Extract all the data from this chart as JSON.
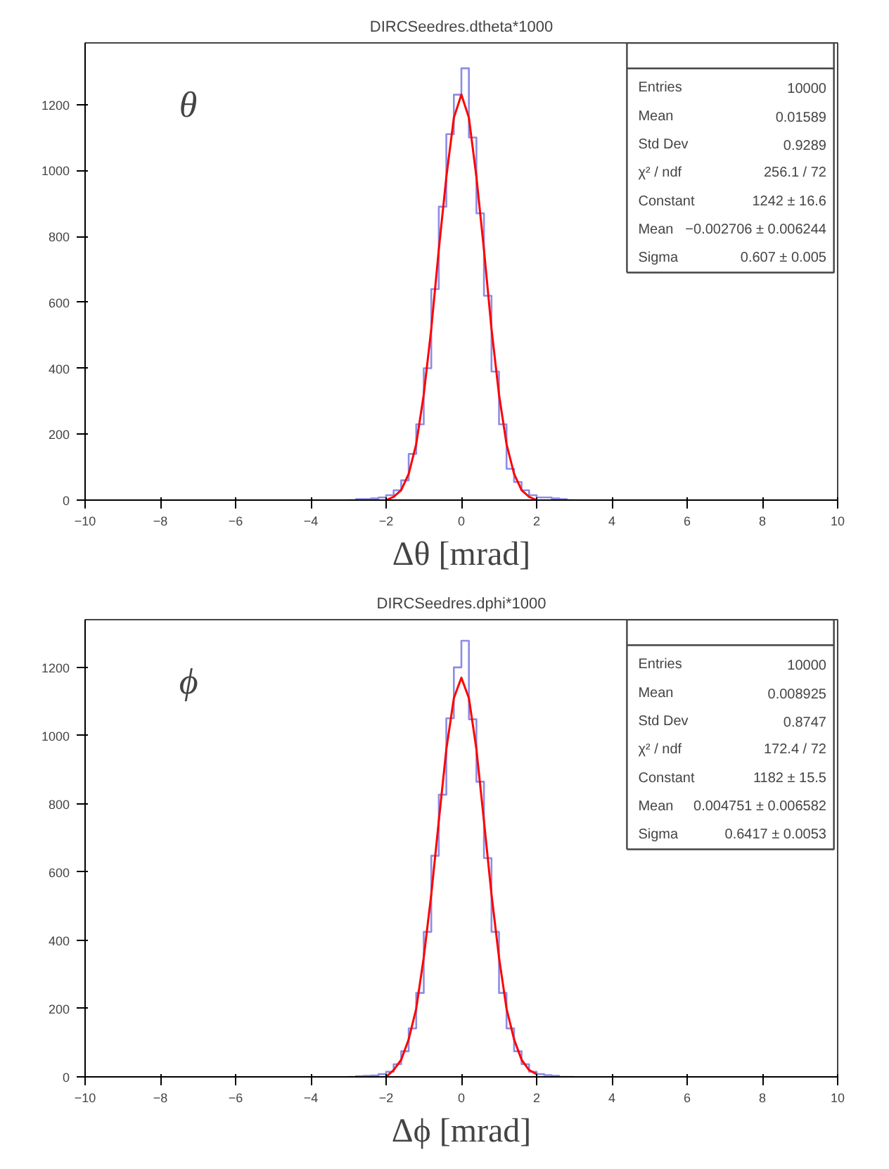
{
  "chart_data": [
    {
      "type": "histogram",
      "title": "DIRCSeedres.dtheta*1000",
      "xlabel": "Δθ [mrad]",
      "color": "#8c8ce6",
      "bins": [
        -3.0,
        -2.8,
        -2.6,
        -2.4,
        -2.2,
        -2.0,
        -1.8,
        -1.6,
        -1.4,
        -1.2,
        -1.0,
        -0.8,
        -0.6,
        -0.4,
        -0.2,
        0.0,
        0.2,
        0.4,
        0.6,
        0.8,
        1.0,
        1.2,
        1.4,
        1.6,
        1.8,
        2.0,
        2.2,
        2.4,
        2.6,
        2.8,
        3.0
      ],
      "values": [
        0,
        3,
        3,
        5,
        8,
        15,
        30,
        60,
        140,
        230,
        400,
        640,
        890,
        1110,
        1230,
        1310,
        1100,
        870,
        620,
        390,
        230,
        95,
        55,
        30,
        15,
        8,
        8,
        5,
        3,
        0
      ],
      "series": [
        {
          "type": "line",
          "color": "#ff0000",
          "x": [
            -2.0,
            -1.8,
            -1.6,
            -1.4,
            -1.2,
            -1.0,
            -0.8,
            -0.6,
            -0.4,
            -0.2,
            0.0,
            0.2,
            0.4,
            0.6,
            0.8,
            1.0,
            1.2,
            1.4,
            1.6,
            1.8,
            2.0
          ],
          "values": [
            0,
            10,
            30,
            80,
            170,
            320,
            520,
            760,
            980,
            1160,
            1230,
            1160,
            980,
            760,
            520,
            320,
            170,
            80,
            30,
            10,
            0
          ]
        }
      ],
      "xlim": [
        -10,
        10
      ],
      "xticks": [
        -10,
        -8,
        -6,
        -4,
        -2,
        0,
        2,
        4,
        6,
        8,
        10
      ],
      "ylim": [
        0,
        1387
      ],
      "yticks": [
        0,
        200,
        400,
        600,
        800,
        1000,
        1200
      ],
      "grid": false,
      "annotations": [
        "θ",
        "Entries",
        "10000",
        "Mean",
        "0.01589",
        "Std Dev",
        "0.9289",
        "χ² / ndf",
        "256.1 / 72",
        "Constant",
        "1242 ± 16.6",
        "Mean",
        "−0.002706 ± 0.006244",
        "Sigma",
        "0.607 ± 0.005"
      ]
    },
    {
      "type": "histogram",
      "title": "DIRCSeedres.dphi*1000",
      "xlabel": "Δϕ [mrad]",
      "color": "#8c8ce6",
      "bins": [
        -3.0,
        -2.8,
        -2.6,
        -2.4,
        -2.2,
        -2.0,
        -1.8,
        -1.6,
        -1.4,
        -1.2,
        -1.0,
        -0.8,
        -0.6,
        -0.4,
        -0.2,
        0.0,
        0.2,
        0.4,
        0.6,
        0.8,
        1.0,
        1.2,
        1.4,
        1.6,
        1.8,
        2.0,
        2.2,
        2.4,
        2.6,
        2.8,
        3.0
      ],
      "values": [
        0,
        2,
        3,
        4,
        8,
        15,
        37,
        75,
        142,
        246,
        425,
        648,
        827,
        1051,
        1200,
        1278,
        1048,
        865,
        641,
        425,
        246,
        142,
        75,
        37,
        15,
        8,
        5,
        3,
        0,
        0
      ],
      "series": [
        {
          "type": "line",
          "color": "#ff0000",
          "x": [
            -2.0,
            -1.8,
            -1.6,
            -1.4,
            -1.2,
            -1.0,
            -0.8,
            -0.6,
            -0.4,
            -0.2,
            0.0,
            0.2,
            0.4,
            0.6,
            0.8,
            1.0,
            1.2,
            1.4,
            1.6,
            1.8,
            2.0
          ],
          "values": [
            0,
            20,
            50,
            110,
            200,
            350,
            535,
            750,
            960,
            1110,
            1170,
            1110,
            960,
            750,
            535,
            350,
            200,
            110,
            50,
            20,
            8
          ]
        }
      ],
      "xlim": [
        -10,
        10
      ],
      "xticks": [
        -10,
        -8,
        -6,
        -4,
        -2,
        0,
        2,
        4,
        6,
        8,
        10
      ],
      "ylim": [
        0,
        1340
      ],
      "yticks": [
        0,
        200,
        400,
        600,
        800,
        1000,
        1200
      ],
      "grid": false,
      "annotations": [
        "ϕ",
        "Entries",
        "10000",
        "Mean",
        "0.008925",
        "Std Dev",
        "0.8747",
        "χ² / ndf",
        "172.4 / 72",
        "Constant",
        "1182 ± 15.5",
        "Mean",
        "0.004751 ± 0.006582",
        "Sigma",
        "0.6417 ± 0.0053"
      ]
    }
  ]
}
